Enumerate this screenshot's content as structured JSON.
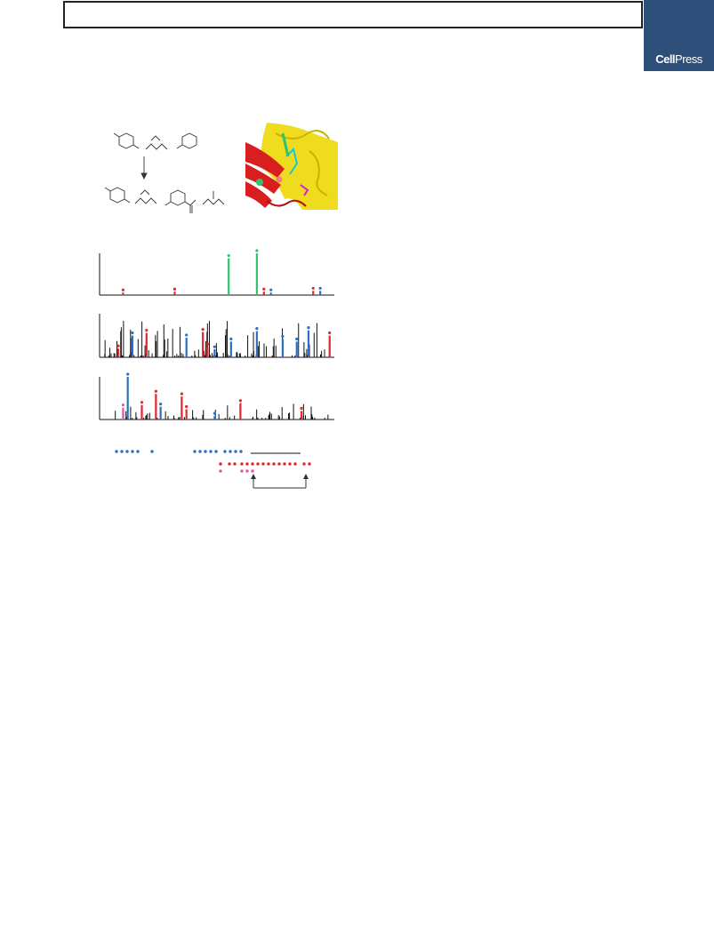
{
  "header": {
    "title": ""
  },
  "brand": {
    "name_bold": "Cell",
    "name_light": "Press"
  },
  "colors": {
    "brand": "#2d4f7a",
    "green": "#2fc46b",
    "blue": "#2b6fc4",
    "red": "#e2262f",
    "pink": "#e05aa8",
    "black": "#111111",
    "yellow": "#f0dc1e",
    "protein_red": "#d81e1e"
  },
  "figure": {
    "panels": [
      {
        "id": "spectrum-1",
        "peaks": [
          {
            "pos": 0.1,
            "h": 0.06,
            "c": "red"
          },
          {
            "pos": 0.32,
            "h": 0.08,
            "c": "red"
          },
          {
            "pos": 0.55,
            "h": 0.88,
            "c": "green"
          },
          {
            "pos": 0.67,
            "h": 1.0,
            "c": "green"
          },
          {
            "pos": 0.7,
            "h": 0.08,
            "c": "red"
          },
          {
            "pos": 0.73,
            "h": 0.06,
            "c": "blue"
          },
          {
            "pos": 0.91,
            "h": 0.1,
            "c": "red"
          },
          {
            "pos": 0.94,
            "h": 0.1,
            "c": "blue"
          }
        ]
      },
      {
        "id": "spectrum-2",
        "peaks": [
          {
            "pos": 0.08,
            "h": 0.2,
            "c": "red"
          },
          {
            "pos": 0.14,
            "h": 0.5,
            "c": "blue"
          },
          {
            "pos": 0.2,
            "h": 0.56,
            "c": "red"
          },
          {
            "pos": 0.37,
            "h": 0.45,
            "c": "blue"
          },
          {
            "pos": 0.44,
            "h": 0.58,
            "c": "red"
          },
          {
            "pos": 0.46,
            "h": 0.24,
            "c": "red"
          },
          {
            "pos": 0.49,
            "h": 0.18,
            "c": "blue"
          },
          {
            "pos": 0.56,
            "h": 0.36,
            "c": "blue"
          },
          {
            "pos": 0.67,
            "h": 0.6,
            "c": "blue"
          },
          {
            "pos": 0.78,
            "h": 0.42,
            "c": "blue"
          },
          {
            "pos": 0.84,
            "h": 0.36,
            "c": "blue"
          },
          {
            "pos": 0.89,
            "h": 0.62,
            "c": "blue"
          },
          {
            "pos": 0.98,
            "h": 0.5,
            "c": "red"
          }
        ]
      },
      {
        "id": "spectrum-3",
        "peaks": [
          {
            "pos": 0.12,
            "h": 1.0,
            "c": "blue"
          },
          {
            "pos": 0.1,
            "h": 0.28,
            "c": "pink"
          },
          {
            "pos": 0.18,
            "h": 0.34,
            "c": "red"
          },
          {
            "pos": 0.24,
            "h": 0.6,
            "c": "red"
          },
          {
            "pos": 0.26,
            "h": 0.3,
            "c": "blue"
          },
          {
            "pos": 0.35,
            "h": 0.54,
            "c": "red"
          },
          {
            "pos": 0.37,
            "h": 0.24,
            "c": "red"
          },
          {
            "pos": 0.49,
            "h": 0.08,
            "c": "blue"
          },
          {
            "pos": 0.6,
            "h": 0.38,
            "c": "red"
          },
          {
            "pos": 0.86,
            "h": 0.2,
            "c": "red"
          }
        ]
      }
    ]
  }
}
